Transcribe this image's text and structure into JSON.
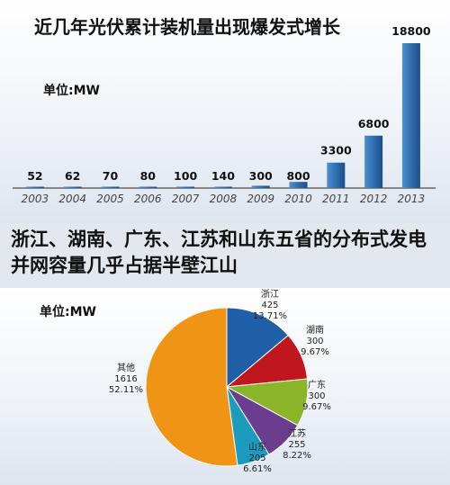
{
  "chart_data": [
    {
      "type": "bar",
      "title": "近几年光伏累计装机量出现爆发式增长",
      "unit": "单位:MW",
      "categories": [
        "2003",
        "2004",
        "2005",
        "2006",
        "2007",
        "2008",
        "2009",
        "2010",
        "2011",
        "2012",
        "2013"
      ],
      "values": [
        52,
        62,
        70,
        80,
        100,
        140,
        300,
        800,
        3300,
        6800,
        18800
      ],
      "value_labels": [
        "52",
        "62",
        "70",
        "80",
        "100",
        "140",
        "300",
        "800",
        "3300",
        "6800",
        "18800"
      ],
      "ylim": [
        0,
        18800
      ],
      "grid": false,
      "color": "#2f6eb0"
    },
    {
      "type": "pie",
      "title": "浙江、湖南、广东、江苏和山东五省的分布式发电并网容量几乎占据半壁江山",
      "unit": "单位:MW",
      "slices": [
        {
          "name": "浙江",
          "value": 425,
          "percent": "13.71%",
          "color": "#1f5fa8"
        },
        {
          "name": "湖南",
          "value": 300,
          "percent": "9.67%",
          "color": "#c0161d"
        },
        {
          "name": "广东",
          "value": 300,
          "percent": "9.67%",
          "color": "#8ab52a"
        },
        {
          "name": "江苏",
          "value": 255,
          "percent": "8.22%",
          "color": "#6a3d8f"
        },
        {
          "name": "山东",
          "value": 205,
          "percent": "6.61%",
          "color": "#1b9cbf"
        },
        {
          "name": "其他",
          "value": 1616,
          "percent": "52.11%",
          "color": "#ef9415"
        }
      ]
    }
  ]
}
